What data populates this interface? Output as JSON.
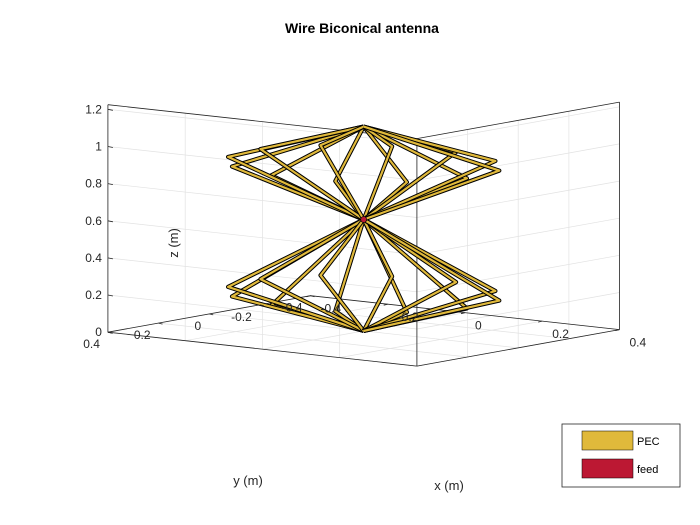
{
  "chart_data": {
    "type": "3d-wireframe",
    "title": "Wire Biconical antenna",
    "xlabel": "x (m)",
    "ylabel": "y (m)",
    "zlabel": "z (m)",
    "xlim": [
      -0.4,
      0.4
    ],
    "ylim": [
      -0.4,
      0.4
    ],
    "zlim": [
      0,
      1.2
    ],
    "xticks": [
      "-0.4",
      "-0.2",
      "0",
      "0.2",
      "0.4"
    ],
    "yticks": [
      "-0.4",
      "-0.2",
      "0",
      "0.2",
      "0.4"
    ],
    "zticks": [
      "0",
      "0.2",
      "0.4",
      "0.6",
      "0.8",
      "1",
      "1.2"
    ],
    "grid": true,
    "box": true,
    "legend": {
      "placement": "bottom-right",
      "entries": [
        {
          "label": "PEC",
          "color": "#e0b93b"
        },
        {
          "label": "feed",
          "color": "#bc1833"
        }
      ]
    },
    "structure": {
      "wires_per_cone": 12,
      "cone_radius_m": 0.3,
      "feed_height_m": 0.6,
      "lower_apex_height_m": 0,
      "upper_apex_height_m": 1.1,
      "bottom_rim_height_m": 0.2,
      "top_rim_height_m": 0.9,
      "wire_color": "#e0b93b",
      "outline_color": "#000000"
    }
  }
}
